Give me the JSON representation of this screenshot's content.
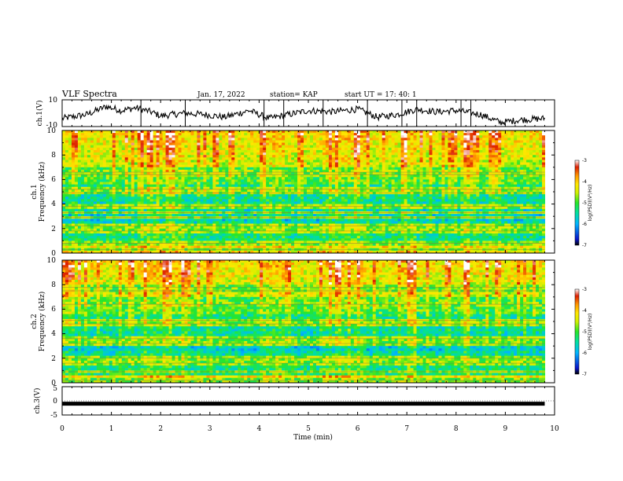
{
  "header": {
    "title": "VLF Spectra",
    "date": "Jan. 17, 2022",
    "station": "station= KAP",
    "start": "start UT =  17: 40: 1"
  },
  "chart_data": [
    {
      "type": "line",
      "name": "ch1-voltage",
      "ylabel": "ch.1(V)",
      "ylim": [
        -10,
        10
      ],
      "yticks": [
        10,
        -10
      ],
      "x_min": [
        0,
        0.5,
        0.9,
        1.2,
        1.5,
        1.8,
        2.0,
        2.5,
        2.9,
        3.3,
        3.8,
        4.2,
        4.6,
        5.0,
        5.5,
        6.0,
        6.4,
        6.8,
        7.2,
        7.6,
        8.0,
        8.5,
        8.9,
        9.3,
        9.8
      ],
      "values": [
        -4,
        -1,
        5,
        2,
        4,
        1,
        -2,
        0,
        -1,
        -3,
        2,
        -4,
        -1,
        2,
        1,
        3,
        -3,
        -1,
        3,
        1,
        2,
        -1,
        -7,
        -5,
        -4
      ]
    },
    {
      "type": "heatmap",
      "name": "ch1-spectrogram",
      "ylabel_channel": "ch.1",
      "ylabel": "Frequency (kHz)",
      "ylim": [
        0,
        10
      ],
      "yticks": [
        0,
        2,
        4,
        6,
        8,
        10
      ],
      "colorbar": {
        "label": "log(PSD)(V²/Hz)",
        "ticks": [
          -3,
          -4,
          -5,
          -6,
          -7
        ],
        "range": [
          -7,
          -3
        ]
      },
      "bands_khz": [
        6.6,
        6.4,
        5.2,
        4.9,
        3.8,
        3.3,
        2.9,
        2.2,
        1.8,
        0.8,
        0.3
      ]
    },
    {
      "type": "heatmap",
      "name": "ch2-spectrogram",
      "ylabel_channel": "ch.2",
      "ylabel": "Frequency (kHz)",
      "ylim": [
        0,
        10
      ],
      "yticks": [
        0,
        2,
        4,
        6,
        8,
        10
      ],
      "colorbar": {
        "label": "log(PSD)(V²/Hz)",
        "ticks": [
          -3,
          -4,
          -5,
          -6,
          -7
        ],
        "range": [
          -7,
          -3
        ]
      },
      "bands_khz": [
        7.8,
        7.5,
        6.4,
        5.1,
        4.8,
        3.6,
        3.2,
        2.0,
        1.6,
        0.9,
        0.2
      ]
    },
    {
      "type": "line",
      "name": "ch3-voltage",
      "ylabel": "ch.3(V)",
      "ylim": [
        -5,
        5
      ],
      "yticks": [
        5,
        0,
        -5
      ],
      "x_min": [
        0,
        9.8
      ],
      "values": [
        -1,
        -1
      ]
    }
  ],
  "x_axis": {
    "label": "Time (min)",
    "xlim": [
      0,
      10
    ],
    "ticks": [
      "0",
      "1",
      "2",
      "3",
      "4",
      "5",
      "6",
      "7",
      "8",
      "9",
      "10"
    ],
    "data_end_min": 9.8
  },
  "segments_min": [
    1.6,
    2.5,
    4.1,
    4.5,
    5.3,
    6.2,
    6.9,
    7.2,
    8.1,
    8.3
  ],
  "colors": {
    "colormap": [
      "#000000",
      "#0a14c8",
      "#00b4ff",
      "#00e0a0",
      "#28e628",
      "#d2f000",
      "#ffe600",
      "#ff9600",
      "#dc1e00",
      "#ffffff"
    ]
  }
}
